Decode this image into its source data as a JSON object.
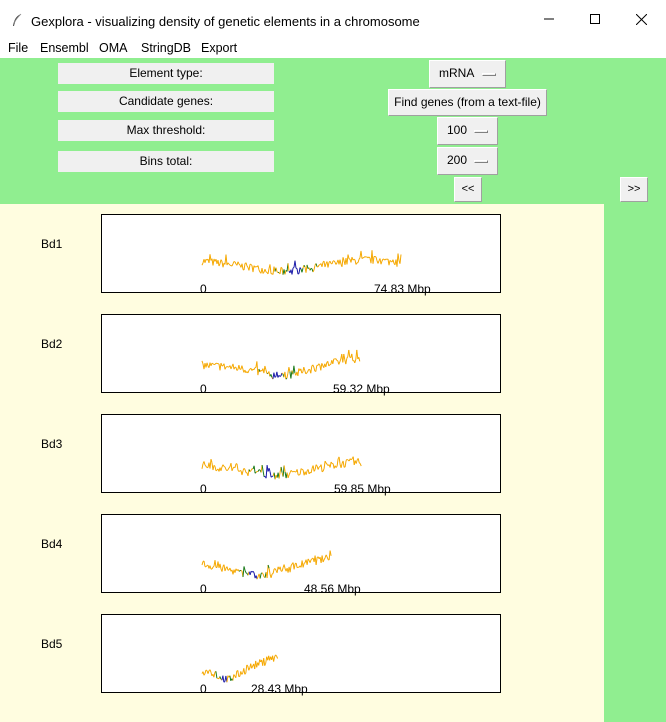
{
  "window": {
    "title": "Gexplora - visualizing density of genetic elements in a chromosome"
  },
  "menu": [
    "File",
    "Ensembl",
    "OMA",
    "StringDB",
    "Export"
  ],
  "controls": {
    "element_type_label": "Element type:",
    "candidate_genes_label": "Candidate genes:",
    "max_threshold_label": "Max threshold:",
    "bins_total_label": "Bins total:",
    "element_type_value": "mRNA",
    "find_genes_button": "Find genes (from a text-file)",
    "max_threshold_value": "100",
    "bins_total_value": "200",
    "prev_button": "<<",
    "next_button": ">>"
  },
  "colors": {
    "panel_bg": "#90ee90",
    "plot_bg": "#fffde0",
    "density_line": "#f5a800",
    "high_candidate": "#1a7a1a",
    "low_candidate": "#1a1aa8"
  },
  "chart_data": [
    {
      "type": "line",
      "chromosome": "Bd1",
      "zero_label": "0",
      "length_label": "74.83 Mbp",
      "length_mbp": 74.83,
      "profile": [
        0.55,
        0.5,
        0.45,
        0.38,
        0.32,
        0.28,
        0.33,
        0.4,
        0.48,
        0.55,
        0.58,
        0.55,
        0.5
      ],
      "dip_at": 0.47
    },
    {
      "type": "line",
      "chromosome": "Bd2",
      "zero_label": "0",
      "length_label": "59.32 Mbp",
      "length_mbp": 59.32,
      "profile": [
        0.45,
        0.42,
        0.4,
        0.36,
        0.3,
        0.22,
        0.15,
        0.22,
        0.32,
        0.42,
        0.5,
        0.58,
        0.62
      ],
      "dip_at": 0.48
    },
    {
      "type": "line",
      "chromosome": "Bd3",
      "zero_label": "0",
      "length_label": "59.85 Mbp",
      "length_mbp": 59.85,
      "profile": [
        0.45,
        0.4,
        0.35,
        0.3,
        0.25,
        0.2,
        0.18,
        0.25,
        0.32,
        0.38,
        0.45,
        0.5,
        0.52
      ],
      "dip_at": 0.42
    },
    {
      "type": "line",
      "chromosome": "Bd4",
      "zero_label": "0",
      "length_label": "48.56 Mbp",
      "length_mbp": 48.56,
      "profile": [
        0.48,
        0.42,
        0.36,
        0.3,
        0.24,
        0.18,
        0.2,
        0.28,
        0.36,
        0.44,
        0.52,
        0.58,
        0.62
      ],
      "dip_at": 0.4
    },
    {
      "type": "line",
      "chromosome": "Bd5",
      "zero_label": "0",
      "length_label": "28.43 Mbp",
      "length_mbp": 28.43,
      "profile": [
        0.3,
        0.28,
        0.22,
        0.14,
        0.08,
        0.16,
        0.24,
        0.34,
        0.42,
        0.48,
        0.54,
        0.6,
        0.66
      ],
      "dip_at": 0.3
    }
  ]
}
